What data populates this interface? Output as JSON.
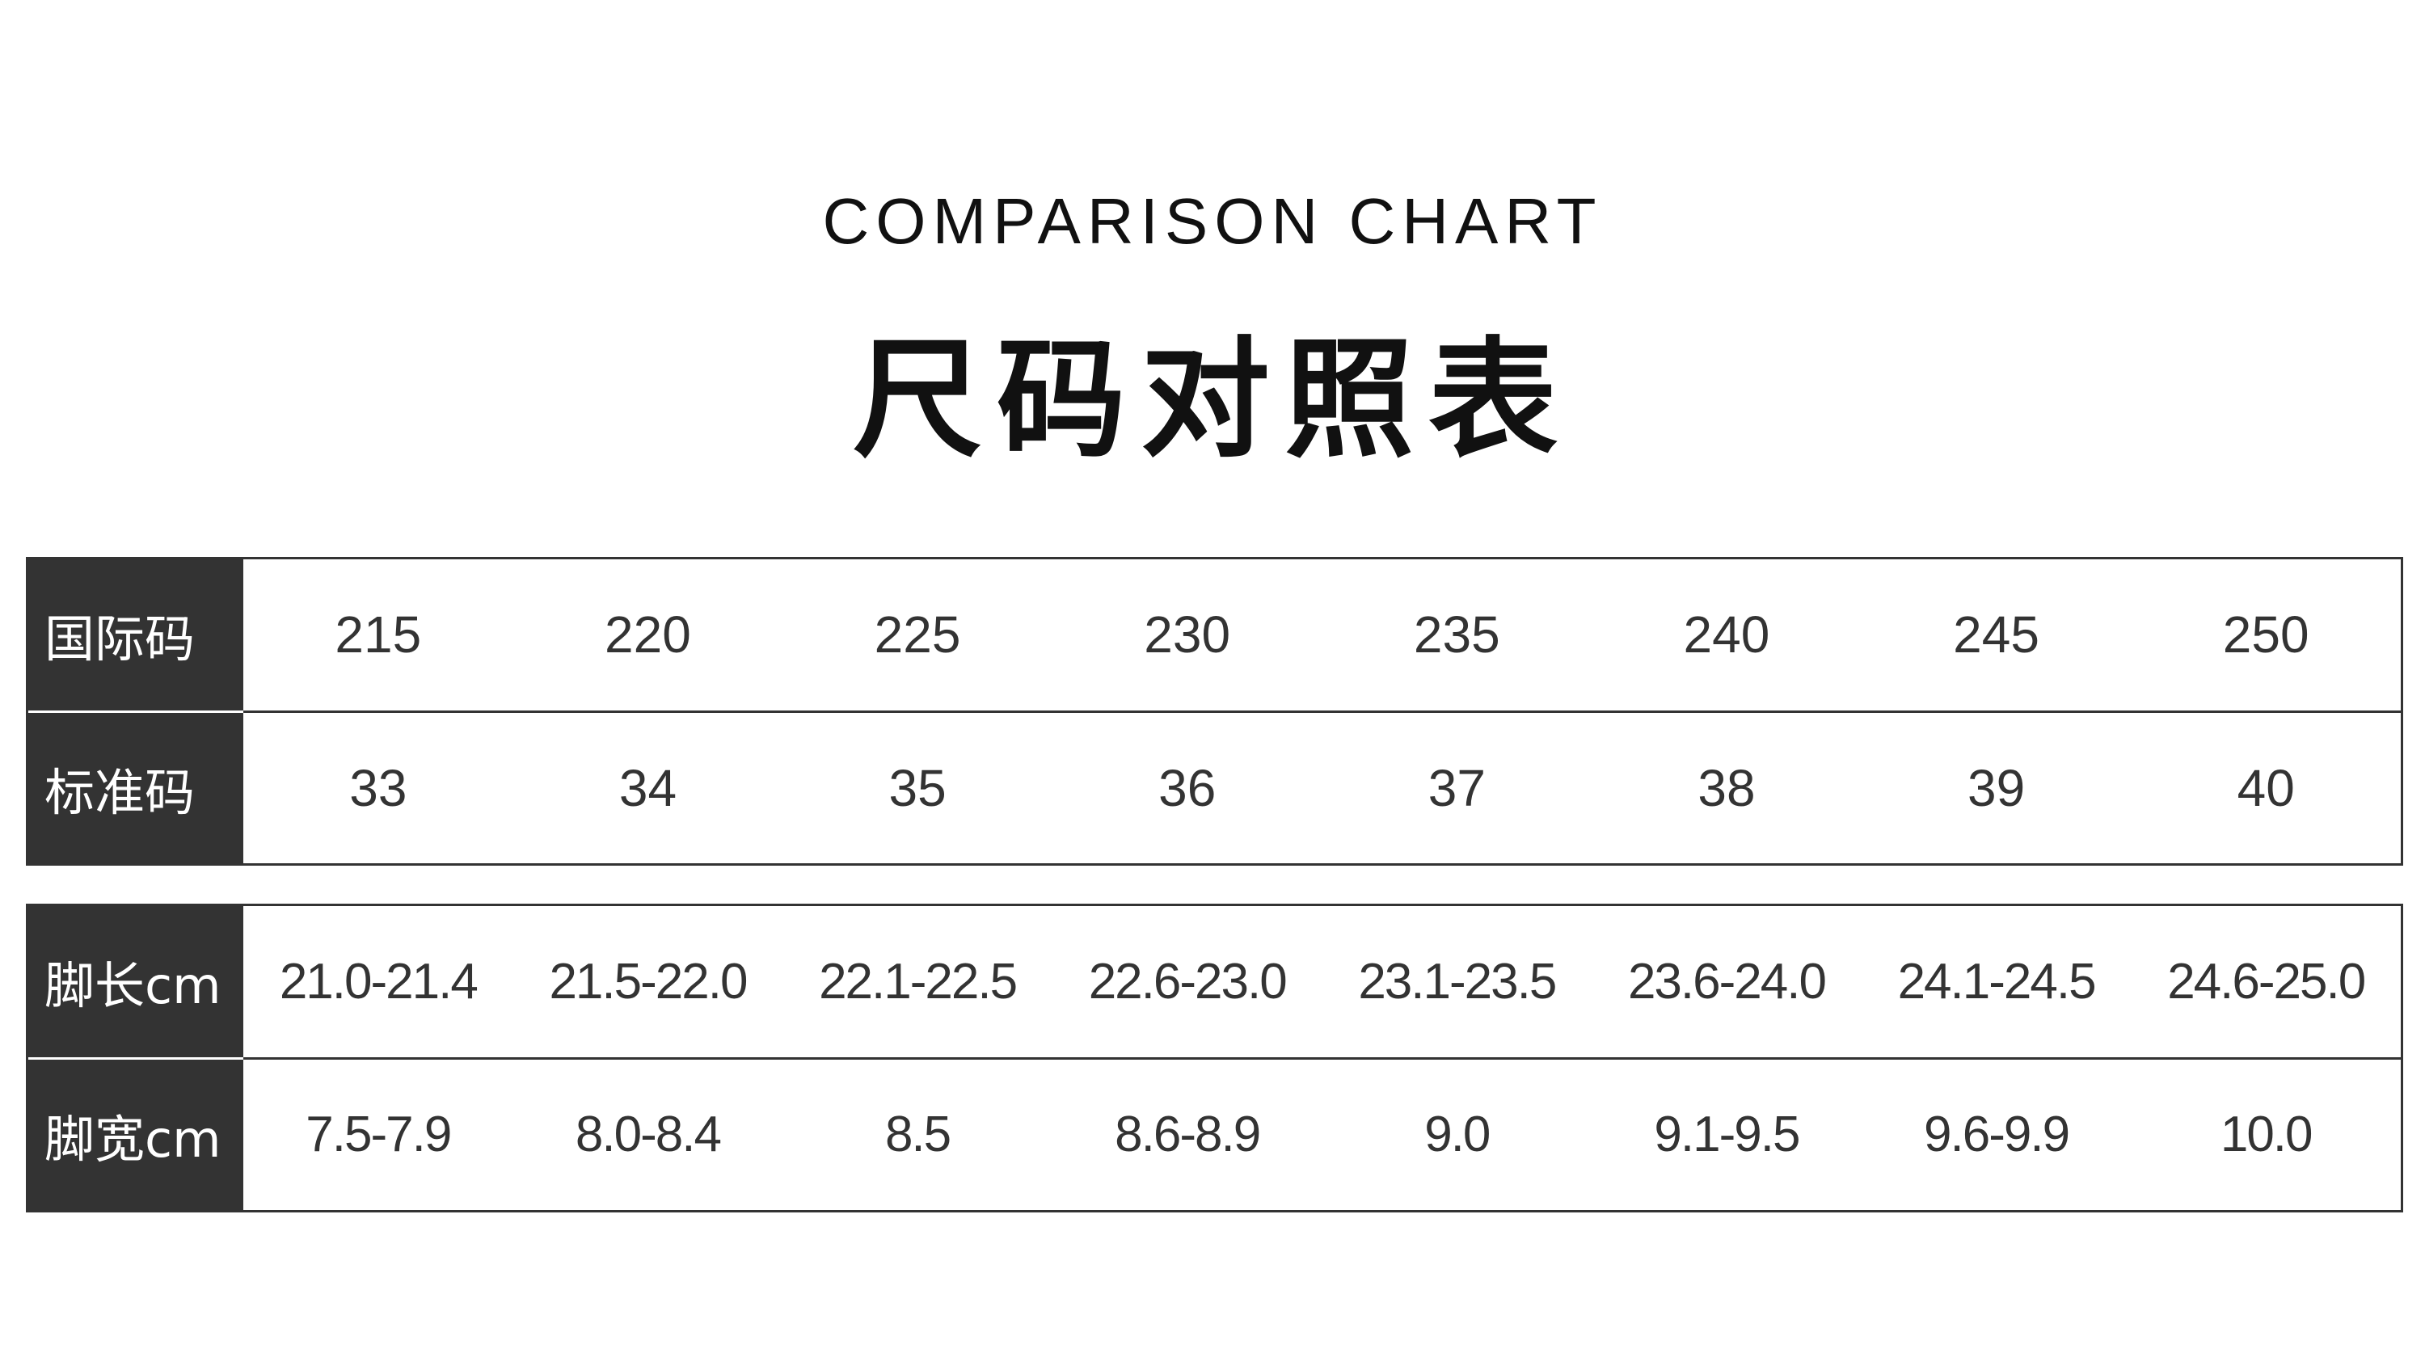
{
  "header": {
    "subtitle_en": "COMPARISON CHART",
    "title_zh": "尺码对照表"
  },
  "table1": {
    "rows": [
      {
        "label": "国际码",
        "values": [
          "215",
          "220",
          "225",
          "230",
          "235",
          "240",
          "245",
          "250"
        ]
      },
      {
        "label": "标准码",
        "values": [
          "33",
          "34",
          "35",
          "36",
          "37",
          "38",
          "39",
          "40"
        ]
      }
    ]
  },
  "table2": {
    "rows": [
      {
        "label": "脚长cm",
        "values": [
          "21.0-21.4",
          "21.5-22.0",
          "22.1-22.5",
          "22.6-23.0",
          "23.1-23.5",
          "23.6-24.0",
          "24.1-24.5",
          "24.6-25.0"
        ]
      },
      {
        "label": "脚宽cm",
        "values": [
          "7.5-7.9",
          "8.0-8.4",
          "8.5",
          "8.6-8.9",
          "9.0",
          "9.1-9.5",
          "9.6-9.9",
          "10.0"
        ]
      }
    ]
  },
  "colors": {
    "header_bg": "#333333",
    "text": "#333333",
    "border": "#333333"
  }
}
